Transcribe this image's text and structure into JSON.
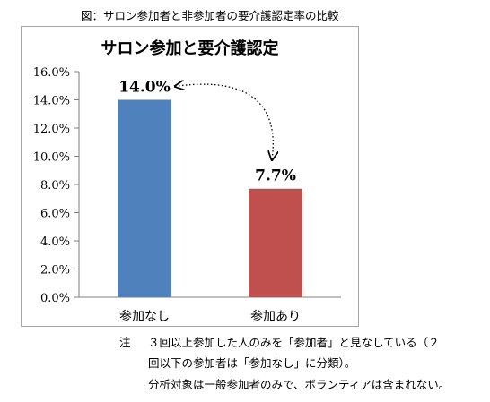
{
  "figure_caption": "図：サロン参加者と非参加者の要介護認定率の比較",
  "chart_data": {
    "type": "bar",
    "title": "サロン参加と要介護認定",
    "categories": [
      "参加なし",
      "参加あり"
    ],
    "values": [
      14.0,
      7.7
    ],
    "value_labels": [
      "14.0%",
      "7.7%"
    ],
    "colors": [
      "#4f81bd",
      "#c0504d"
    ],
    "ylim": [
      0,
      16
    ],
    "yticks": [
      0,
      2,
      4,
      6,
      8,
      10,
      12,
      14,
      16
    ],
    "ytick_labels": [
      "0.0%",
      "2.0%",
      "4.0%",
      "6.0%",
      "8.0%",
      "10.0%",
      "12.0%",
      "14.0%",
      "16.0%"
    ],
    "grid": false,
    "annotation": "double-headed dotted arrow between bar labels"
  },
  "notes": {
    "mark": "注",
    "line1": "３回以上参加した人のみを「参加者」と見なしている（２",
    "line2": "回以下の参加者は「参加なし」に分類）。",
    "line3": "分析対象は一般参加者のみで、ボランティアは含まれない。"
  }
}
